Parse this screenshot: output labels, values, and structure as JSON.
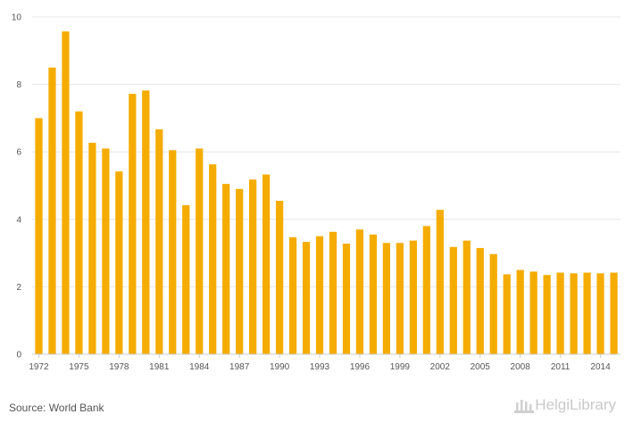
{
  "chart_data": {
    "type": "bar",
    "categories": [
      "1972",
      "1973",
      "1974",
      "1975",
      "1976",
      "1977",
      "1978",
      "1979",
      "1980",
      "1981",
      "1982",
      "1983",
      "1984",
      "1985",
      "1986",
      "1987",
      "1988",
      "1989",
      "1990",
      "1991",
      "1992",
      "1993",
      "1994",
      "1995",
      "1996",
      "1997",
      "1998",
      "1999",
      "2000",
      "2001",
      "2002",
      "2003",
      "2004",
      "2005",
      "2006",
      "2007",
      "2008",
      "2009",
      "2010",
      "2011",
      "2012",
      "2013",
      "2014",
      "2015"
    ],
    "values": [
      7.0,
      8.5,
      9.57,
      7.2,
      6.27,
      6.1,
      5.42,
      7.72,
      7.82,
      6.67,
      6.05,
      4.42,
      6.1,
      5.63,
      5.05,
      4.9,
      5.18,
      5.33,
      4.55,
      3.47,
      3.33,
      3.5,
      3.63,
      3.28,
      3.7,
      3.55,
      3.3,
      3.3,
      3.37,
      3.8,
      4.28,
      3.18,
      3.37,
      3.15,
      2.97,
      2.37,
      2.5,
      2.45,
      2.35,
      2.42,
      2.4,
      2.42,
      2.4,
      2.42
    ],
    "x_tick_labels": [
      "1972",
      "1975",
      "1978",
      "1981",
      "1984",
      "1987",
      "1990",
      "1993",
      "1996",
      "1999",
      "2002",
      "2005",
      "2008",
      "2011",
      "2014"
    ],
    "y_ticks": [
      0,
      2,
      4,
      6,
      8,
      10
    ],
    "ylim": [
      0,
      10
    ],
    "grid": true,
    "bar_color": "#f5ac00"
  },
  "footer": {
    "source": "Source: World Bank",
    "logo": "HelgiLibrary"
  }
}
